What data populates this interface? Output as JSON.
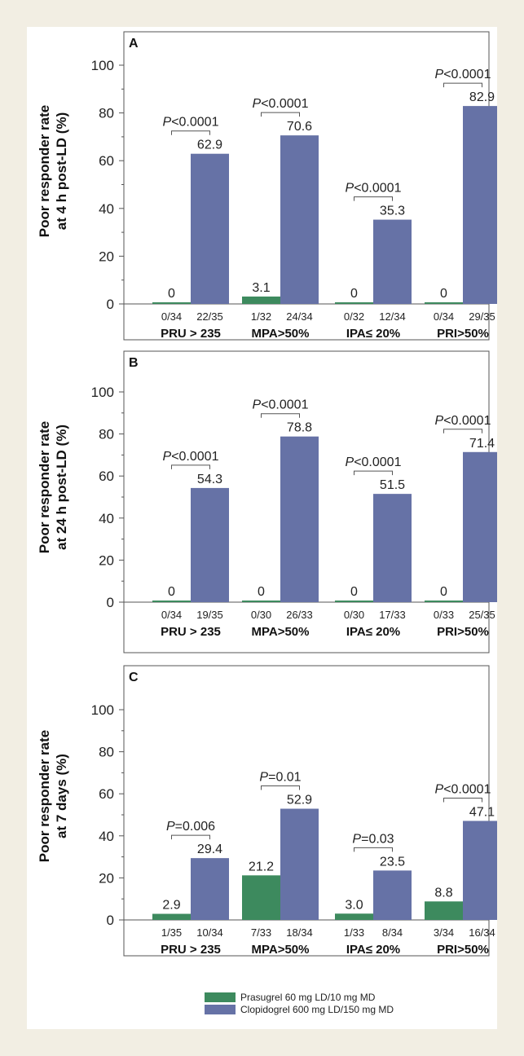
{
  "colors": {
    "prasugrel": "#3d8a5e",
    "clopidogrel": "#6672a6",
    "page_background": "#f2eee3"
  },
  "legend": {
    "prasugrel_label": "Prasugrel 60 mg LD/10 mg MD",
    "clopidogrel_label": "Clopidogrel 600 mg LD/150 mg MD"
  },
  "chart_data": [
    {
      "type": "bar",
      "panel": "A",
      "ylabel_line1": "Poor responder rate",
      "ylabel_line2": "at 4 h post-LD (%)",
      "ylim": [
        0,
        100
      ],
      "yticks": [
        0,
        20,
        40,
        60,
        80,
        100
      ],
      "categories": [
        "PRU > 235",
        "MPA>50%",
        "IPA≤ 20%",
        "PRI>50%"
      ],
      "series": [
        {
          "name": "Prasugrel 60 mg LD/10 mg MD",
          "values": [
            0,
            3.1,
            0,
            0
          ],
          "labels": [
            "0",
            "3.1",
            "0",
            "0"
          ],
          "fractions": [
            "0/34",
            "1/32",
            "0/32",
            "0/34"
          ]
        },
        {
          "name": "Clopidogrel 600 mg LD/150 mg MD",
          "values": [
            62.9,
            70.6,
            35.3,
            82.9
          ],
          "labels": [
            "62.9",
            "70.6",
            "35.3",
            "82.9"
          ],
          "fractions": [
            "22/35",
            "24/34",
            "12/34",
            "29/35"
          ]
        }
      ],
      "p_values": [
        {
          "prefix": "P",
          "value": "<0.0001"
        },
        {
          "prefix": "P",
          "value": "<0.0001"
        },
        {
          "prefix": "P",
          "value": "<0.0001"
        },
        {
          "prefix": "P",
          "value": "<0.0001"
        }
      ]
    },
    {
      "type": "bar",
      "panel": "B",
      "ylabel_line1": "Poor responder rate",
      "ylabel_line2": "at 24 h post-LD (%)",
      "ylim": [
        0,
        100
      ],
      "yticks": [
        0,
        20,
        40,
        60,
        80,
        100
      ],
      "categories": [
        "PRU > 235",
        "MPA>50%",
        "IPA≤ 20%",
        "PRI>50%"
      ],
      "series": [
        {
          "name": "Prasugrel 60 mg LD/10 mg MD",
          "values": [
            0,
            0,
            0,
            0
          ],
          "labels": [
            "0",
            "0",
            "0",
            "0"
          ],
          "fractions": [
            "0/34",
            "0/30",
            "0/30",
            "0/33"
          ]
        },
        {
          "name": "Clopidogrel 600 mg LD/150 mg MD",
          "values": [
            54.3,
            78.8,
            51.5,
            71.4
          ],
          "labels": [
            "54.3",
            "78.8",
            "51.5",
            "71.4"
          ],
          "fractions": [
            "19/35",
            "26/33",
            "17/33",
            "25/35"
          ]
        }
      ],
      "p_values": [
        {
          "prefix": "P",
          "value": "<0.0001"
        },
        {
          "prefix": "P",
          "value": "<0.0001"
        },
        {
          "prefix": "P",
          "value": "<0.0001"
        },
        {
          "prefix": "P",
          "value": "<0.0001"
        }
      ]
    },
    {
      "type": "bar",
      "panel": "C",
      "ylabel_line1": "Poor responder rate",
      "ylabel_line2": "at 7 days (%)",
      "ylim": [
        0,
        100
      ],
      "yticks": [
        0,
        20,
        40,
        60,
        80,
        100
      ],
      "categories": [
        "PRU > 235",
        "MPA>50%",
        "IPA≤ 20%",
        "PRI>50%"
      ],
      "series": [
        {
          "name": "Prasugrel 60 mg LD/10 mg MD",
          "values": [
            2.9,
            21.2,
            3.0,
            8.8
          ],
          "labels": [
            "2.9",
            "21.2",
            "3.0",
            "8.8"
          ],
          "fractions": [
            "1/35",
            "7/33",
            "1/33",
            "3/34"
          ]
        },
        {
          "name": "Clopidogrel 600 mg LD/150 mg MD",
          "values": [
            29.4,
            52.9,
            23.5,
            47.1
          ],
          "labels": [
            "29.4",
            "52.9",
            "23.5",
            "47.1"
          ],
          "fractions": [
            "10/34",
            "18/34",
            "8/34",
            "16/34"
          ]
        }
      ],
      "p_values": [
        {
          "prefix": "P",
          "value": "=0.006"
        },
        {
          "prefix": "P",
          "value": "=0.01"
        },
        {
          "prefix": "P",
          "value": "=0.03"
        },
        {
          "prefix": "P",
          "value": "<0.0001"
        }
      ]
    }
  ]
}
